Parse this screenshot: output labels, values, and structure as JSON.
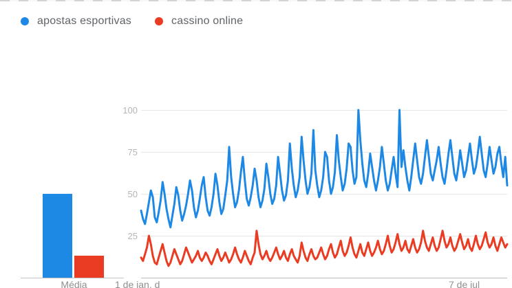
{
  "chart_data": {
    "type": "line",
    "title": "",
    "legend": [
      {
        "label": "apostas esportivas",
        "color": "#1e88e5"
      },
      {
        "label": "cassino online",
        "color": "#ea3b23"
      }
    ],
    "yticks": [
      100,
      75,
      50,
      25
    ],
    "ylim": [
      0,
      100
    ],
    "grid": true,
    "xlabels": {
      "media": "Média",
      "start": "1 de jan. d",
      "end": "7 de jul"
    },
    "media_bars": {
      "label": "Média",
      "values": [
        {
          "name": "apostas esportivas",
          "value": 50
        },
        {
          "name": "cassino online",
          "value": 13
        }
      ]
    },
    "series": [
      {
        "name": "apostas esportivas",
        "color": "#1e88e5",
        "values": [
          40,
          35,
          32,
          38,
          45,
          52,
          48,
          36,
          33,
          39,
          46,
          57,
          50,
          41,
          35,
          30,
          37,
          44,
          54,
          49,
          40,
          34,
          38,
          43,
          50,
          58,
          52,
          42,
          36,
          40,
          47,
          55,
          60,
          48,
          40,
          37,
          42,
          50,
          62,
          55,
          45,
          38,
          41,
          49,
          58,
          78,
          60,
          50,
          42,
          45,
          52,
          63,
          72,
          58,
          47,
          43,
          48,
          55,
          65,
          58,
          48,
          42,
          46,
          53,
          68,
          60,
          50,
          44,
          47,
          55,
          72,
          62,
          52,
          46,
          49,
          58,
          80,
          65,
          55,
          48,
          52,
          60,
          84,
          70,
          58,
          50,
          54,
          62,
          88,
          64,
          55,
          48,
          52,
          60,
          75,
          72,
          58,
          50,
          54,
          63,
          85,
          70,
          60,
          52,
          56,
          65,
          80,
          78,
          64,
          56,
          60,
          100,
          82,
          68,
          58,
          54,
          62,
          74,
          66,
          58,
          52,
          58,
          66,
          78,
          68,
          58,
          52,
          56,
          64,
          72,
          62,
          54,
          100,
          66,
          76,
          66,
          58,
          52,
          60,
          70,
          80,
          70,
          60,
          56,
          62,
          72,
          82,
          72,
          62,
          58,
          64,
          70,
          78,
          68,
          60,
          56,
          64,
          74,
          82,
          72,
          62,
          58,
          66,
          76,
          68,
          60,
          64,
          72,
          80,
          70,
          62,
          66,
          74,
          84,
          74,
          64,
          60,
          68,
          78,
          70,
          62,
          66,
          74,
          78,
          68,
          60,
          72,
          55
        ]
      },
      {
        "name": "cassino online",
        "color": "#ea3b23",
        "values": [
          12,
          10,
          14,
          18,
          25,
          20,
          13,
          9,
          8,
          12,
          16,
          20,
          15,
          10,
          7,
          9,
          13,
          17,
          14,
          11,
          8,
          10,
          14,
          18,
          15,
          12,
          9,
          11,
          13,
          16,
          12,
          10,
          12,
          15,
          13,
          10,
          8,
          11,
          14,
          17,
          13,
          10,
          12,
          15,
          12,
          9,
          11,
          14,
          18,
          14,
          11,
          9,
          12,
          16,
          13,
          10,
          8,
          12,
          15,
          28,
          20,
          14,
          11,
          13,
          16,
          12,
          10,
          12,
          15,
          18,
          14,
          11,
          13,
          16,
          12,
          10,
          14,
          17,
          13,
          11,
          9,
          13,
          21,
          16,
          12,
          10,
          14,
          17,
          13,
          11,
          12,
          15,
          18,
          14,
          11,
          13,
          17,
          20,
          15,
          12,
          14,
          18,
          22,
          16,
          13,
          15,
          19,
          24,
          18,
          14,
          12,
          16,
          20,
          15,
          13,
          17,
          21,
          16,
          13,
          15,
          18,
          22,
          17,
          14,
          16,
          20,
          25,
          19,
          15,
          17,
          21,
          26,
          20,
          16,
          18,
          22,
          17,
          15,
          19,
          23,
          18,
          15,
          17,
          21,
          28,
          22,
          18,
          16,
          20,
          24,
          19,
          16,
          18,
          23,
          28,
          22,
          18,
          20,
          24,
          19,
          16,
          18,
          22,
          26,
          21,
          17,
          19,
          23,
          18,
          16,
          20,
          25,
          20,
          17,
          19,
          23,
          27,
          21,
          18,
          20,
          24,
          19,
          16,
          20,
          24,
          21,
          18,
          20
        ]
      }
    ]
  }
}
